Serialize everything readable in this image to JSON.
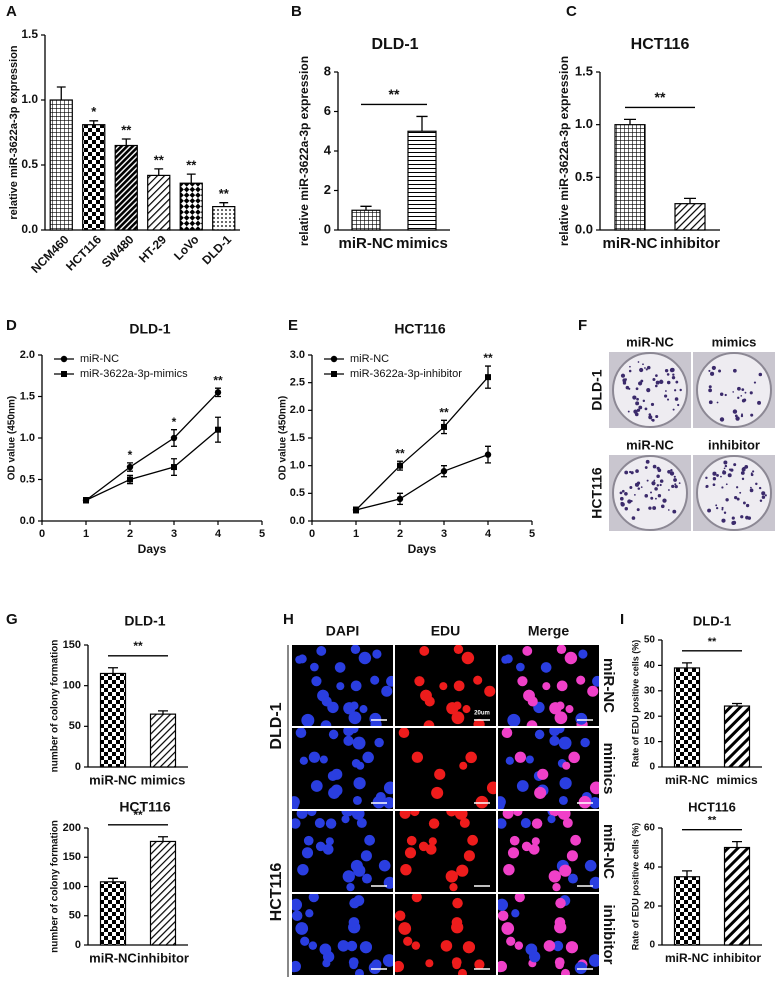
{
  "chart_data": [
    {
      "type": "bar",
      "panel": "A",
      "ylabel": "relative miR-3622a-3p expression",
      "categories": [
        "NCM460",
        "HCT116",
        "SW480",
        "HT-29",
        "LoVo",
        "DLD-1"
      ],
      "values": [
        1.0,
        0.81,
        0.65,
        0.42,
        0.36,
        0.18
      ],
      "errors": [
        0.1,
        0.03,
        0.05,
        0.05,
        0.07,
        0.03
      ],
      "annotations": [
        null,
        "*",
        "**",
        "**",
        "**",
        "**"
      ],
      "patterns": [
        "grid",
        "checker",
        "darkdiag",
        "diag",
        "diamond",
        "dots"
      ],
      "ylim": [
        0,
        1.5
      ],
      "yticks": [
        {
          "value": 0,
          "label": "0.0"
        },
        0.5,
        {
          "value": 1,
          "label": "1.0"
        },
        1.5
      ],
      "xlabel_rotate": true
    },
    {
      "type": "bar",
      "panel": "B",
      "title": "DLD-1",
      "ylabel": "relative miR-3622a-3p expression",
      "categories": [
        "miR-NC",
        "mimics"
      ],
      "values": [
        1,
        5
      ],
      "errors": [
        0.2,
        0.75
      ],
      "significance": "**",
      "patterns": [
        "grid",
        "hlines"
      ],
      "ylim": [
        0,
        8
      ],
      "yticks": [
        0,
        2,
        4,
        6,
        8
      ]
    },
    {
      "type": "bar",
      "panel": "C",
      "title": "HCT116",
      "ylabel": "relative miR-3622a-3p expression",
      "categories": [
        "miR-NC",
        "inhibitor"
      ],
      "values": [
        1.0,
        0.25
      ],
      "errors": [
        0.05,
        0.05
      ],
      "significance": "**",
      "patterns": [
        "grid",
        "diag"
      ],
      "ylim": [
        0,
        1.5
      ],
      "yticks": [
        {
          "value": 0,
          "label": "0.0"
        },
        0.5,
        {
          "value": 1,
          "label": "1.0"
        },
        1.5
      ]
    },
    {
      "type": "line",
      "panel": "D",
      "title": "DLD-1",
      "xlabel": "Days",
      "ylabel": "OD value (450nm)",
      "x": [
        1,
        2,
        3,
        4
      ],
      "annotations": [
        null,
        "*",
        "*",
        "**"
      ],
      "series": [
        {
          "name": "miR-NC",
          "marker": "circle",
          "values": [
            0.25,
            0.65,
            1.0,
            1.55
          ],
          "errors": [
            0.03,
            0.05,
            0.1,
            0.05
          ]
        },
        {
          "name": "miR-3622a-3p-mimics",
          "marker": "square",
          "values": [
            0.25,
            0.5,
            0.65,
            1.1
          ],
          "errors": [
            0.03,
            0.05,
            0.1,
            0.15
          ]
        }
      ],
      "xlim": [
        0,
        5
      ],
      "xticks": [
        0,
        1,
        2,
        3,
        4,
        5
      ],
      "ylim": [
        0,
        2
      ],
      "yticks": [
        {
          "value": 0,
          "label": "0.0"
        },
        0.5,
        {
          "value": 1,
          "label": "1.0"
        },
        1.5,
        {
          "value": 2,
          "label": "2.0"
        }
      ],
      "legend": "top-left"
    },
    {
      "type": "line",
      "panel": "E",
      "title": "HCT116",
      "xlabel": "Days",
      "ylabel": "OD value (450nm)",
      "x": [
        1,
        2,
        3,
        4
      ],
      "annotations": [
        null,
        "**",
        "**",
        "**"
      ],
      "series": [
        {
          "name": "miR-NC",
          "marker": "circle",
          "values": [
            0.2,
            0.4,
            0.9,
            1.2
          ],
          "errors": [
            0.05,
            0.1,
            0.1,
            0.15
          ]
        },
        {
          "name": "miR-3622a-3p-inhibitor",
          "marker": "square",
          "values": [
            0.2,
            1.0,
            1.7,
            2.6
          ],
          "errors": [
            0.05,
            0.08,
            0.12,
            0.2
          ]
        }
      ],
      "xlim": [
        0,
        5
      ],
      "xticks": [
        0,
        1,
        2,
        3,
        4,
        5
      ],
      "ylim": [
        0,
        3
      ],
      "yticks": [
        {
          "value": 0,
          "label": "0.0"
        },
        0.5,
        {
          "value": 1,
          "label": "1.0"
        },
        1.5,
        {
          "value": 2,
          "label": "2.0"
        },
        2.5,
        {
          "value": 3,
          "label": "3.0"
        }
      ],
      "legend": "top-left"
    },
    {
      "type": "bar",
      "panel": "G",
      "title": "DLD-1",
      "ylabel": "number of colony formation",
      "categories": [
        "miR-NC",
        "mimics"
      ],
      "values": [
        115,
        65
      ],
      "errors": [
        7,
        4
      ],
      "significance": "**",
      "patterns": [
        "checker",
        "diag"
      ],
      "ylim": [
        0,
        150
      ],
      "yticks": [
        0,
        50,
        100,
        150
      ]
    },
    {
      "type": "bar",
      "title": "HCT116",
      "ylabel": "number of colony formation",
      "categories": [
        "miR-NC",
        "inhibitor"
      ],
      "values": [
        108,
        177
      ],
      "errors": [
        6,
        8
      ],
      "significance": "**",
      "patterns": [
        "checker",
        "diag"
      ],
      "ylim": [
        0,
        200
      ],
      "yticks": [
        0,
        50,
        100,
        150,
        200
      ]
    },
    {
      "type": "bar",
      "panel": "I",
      "title": "DLD-1",
      "ylabel": "Rate of EDU positive cells (%)",
      "categories": [
        "miR-NC",
        "mimics"
      ],
      "values": [
        39,
        24
      ],
      "errors": [
        2,
        1
      ],
      "significance": "**",
      "patterns": [
        "checker",
        "bolddiag"
      ],
      "ylim": [
        0,
        50
      ],
      "yticks": [
        0,
        10,
        20,
        30,
        40,
        50
      ]
    },
    {
      "type": "bar",
      "title": "HCT116",
      "ylabel": "Rate of EDU positive cells (%)",
      "categories": [
        "miR-NC",
        "inhibitor"
      ],
      "values": [
        35,
        50
      ],
      "errors": [
        3,
        3
      ],
      "significance": "**",
      "patterns": [
        "checker",
        "bolddiag"
      ],
      "ylim": [
        0,
        60
      ],
      "yticks": [
        0,
        20,
        40,
        60
      ]
    }
  ],
  "panel_f": {
    "panel": "F",
    "rows": [
      {
        "label": "DLD-1",
        "columns": [
          "miR-NC",
          "mimics"
        ]
      },
      {
        "label": "HCT116",
        "columns": [
          "miR-NC",
          "inhibitor"
        ]
      }
    ]
  },
  "panel_h": {
    "panel": "H",
    "columns": [
      "DAPI",
      "EDU",
      "Merge"
    ],
    "groups": [
      {
        "label": "DLD-1",
        "rows": [
          "miR-NC",
          "mimics"
        ]
      },
      {
        "label": "HCT116",
        "rows": [
          "miR-NC",
          "inhibitor"
        ]
      }
    ],
    "scale_bar": "20um"
  }
}
